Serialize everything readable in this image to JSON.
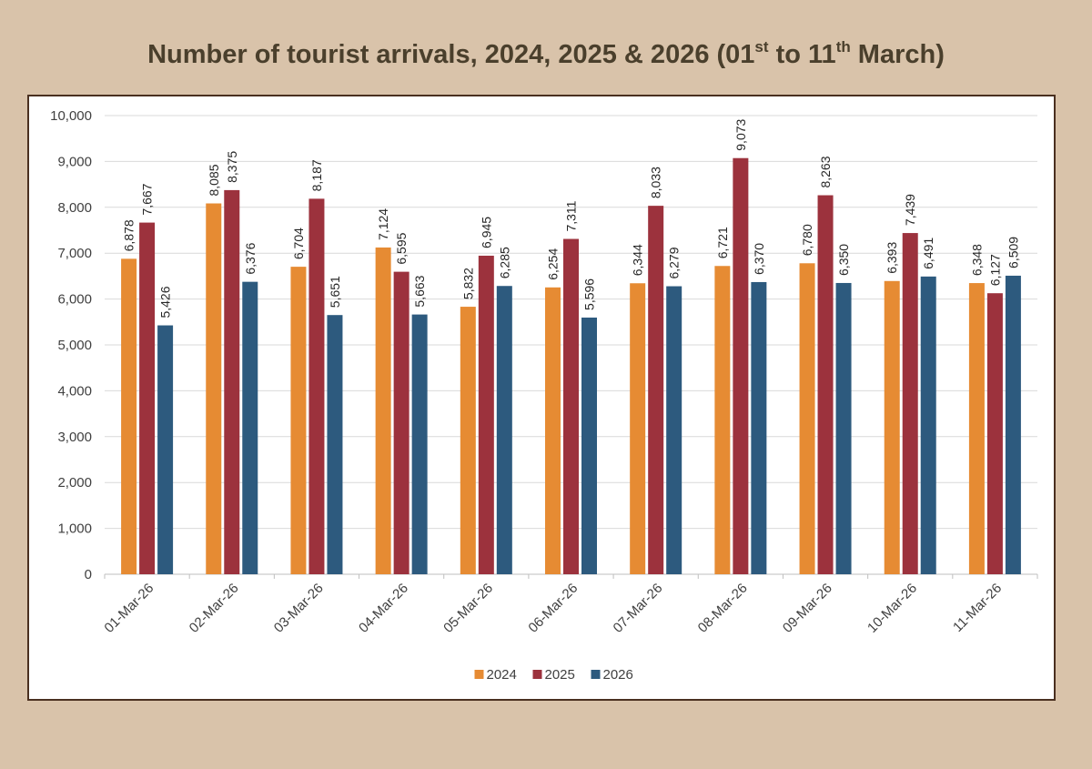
{
  "title": {
    "main": "Number of tourist arrivals, 2024, 2025 & 2026 (01",
    "sup1": "st",
    "mid": " to 11",
    "sup2": "th",
    "end": " March)"
  },
  "colors": {
    "2024": "#e68b33",
    "2025": "#9c323d",
    "2026": "#2d5a7e"
  },
  "chart_data": {
    "type": "bar",
    "title": "Number of tourist arrivals, 2024, 2025 & 2026 (01st to 11th March)",
    "xlabel": "",
    "ylabel": "",
    "ylim": [
      0,
      10000
    ],
    "yticks": [
      0,
      1000,
      2000,
      3000,
      4000,
      5000,
      6000,
      7000,
      8000,
      9000,
      10000
    ],
    "ytick_labels": [
      "0",
      "1,000",
      "2,000",
      "3,000",
      "4,000",
      "5,000",
      "6,000",
      "7,000",
      "8,000",
      "9,000",
      "10,000"
    ],
    "grid": true,
    "legend": "bottom",
    "categories": [
      "01-Mar-26",
      "02-Mar-26",
      "03-Mar-26",
      "04-Mar-26",
      "05-Mar-26",
      "06-Mar-26",
      "07-Mar-26",
      "08-Mar-26",
      "09-Mar-26",
      "10-Mar-26",
      "11-Mar-26"
    ],
    "series": [
      {
        "name": "2024",
        "values": [
          6878,
          8085,
          6704,
          7124,
          5832,
          6254,
          6344,
          6721,
          6780,
          6393,
          6348
        ],
        "labels": [
          "6,878",
          "8,085",
          "6,704",
          "7,124",
          "5,832",
          "6,254",
          "6,344",
          "6,721",
          "6,780",
          "6,393",
          "6,348"
        ]
      },
      {
        "name": "2025",
        "values": [
          7667,
          8375,
          8187,
          6595,
          6945,
          7311,
          8033,
          9073,
          8263,
          7439,
          6127
        ],
        "labels": [
          "7,667",
          "8,375",
          "8,187",
          "6,595",
          "6,945",
          "7,311",
          "8,033",
          "9,073",
          "8,263",
          "7,439",
          "6,127"
        ]
      },
      {
        "name": "2026",
        "values": [
          5426,
          6376,
          5651,
          5663,
          6285,
          5596,
          6279,
          6370,
          6350,
          6491,
          6509
        ],
        "labels": [
          "5,426",
          "6,376",
          "5,651",
          "5,663",
          "6,285",
          "5,596",
          "6,279",
          "6,370",
          "6,350",
          "6,491",
          "6,509"
        ]
      }
    ]
  }
}
